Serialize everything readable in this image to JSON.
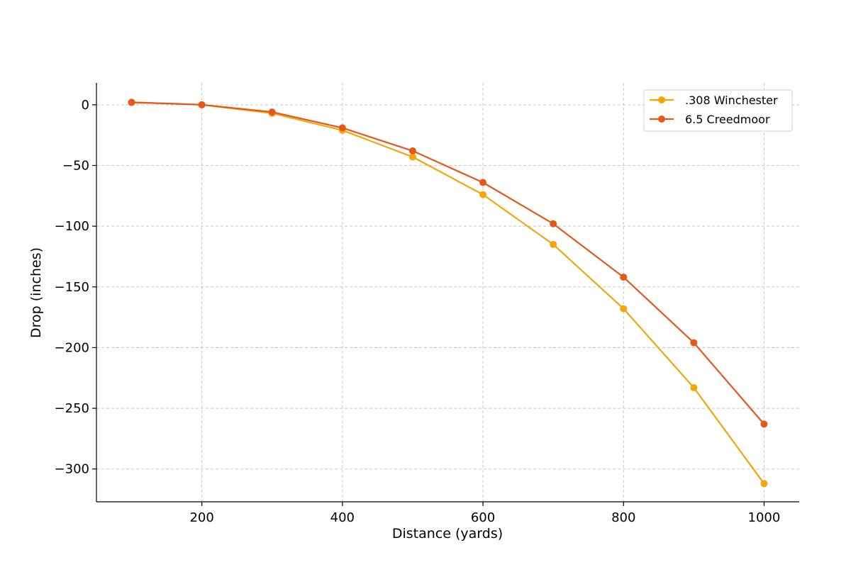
{
  "chart_data": {
    "type": "line",
    "title": "",
    "xlabel": "Distance (yards)",
    "ylabel": "Drop (inches)",
    "x": [
      100,
      200,
      300,
      400,
      500,
      600,
      700,
      800,
      900,
      1000
    ],
    "xlim": [
      50,
      1050
    ],
    "ylim": [
      -327,
      18
    ],
    "xticks": [
      200,
      400,
      600,
      800,
      1000
    ],
    "xtick_labels": [
      "200",
      "400",
      "600",
      "800",
      "1000"
    ],
    "yticks": [
      0,
      -50,
      -100,
      -150,
      -200,
      -250,
      -300
    ],
    "ytick_labels": [
      "0",
      "−50",
      "−100",
      "−150",
      "−200",
      "−250",
      "−300"
    ],
    "grid": true,
    "legend_position": "top-right",
    "series": [
      {
        "name": ".308 Winchester",
        "color": "#F5A50A",
        "values": [
          2,
          0,
          -7,
          -21,
          -43,
          -74,
          -115,
          -168,
          -233,
          -312
        ]
      },
      {
        "name": "6.5 Creedmoor",
        "color": "#E5581A",
        "values": [
          2,
          0,
          -6,
          -19,
          -38,
          -64,
          -98,
          -142,
          -196,
          -263
        ]
      }
    ]
  }
}
